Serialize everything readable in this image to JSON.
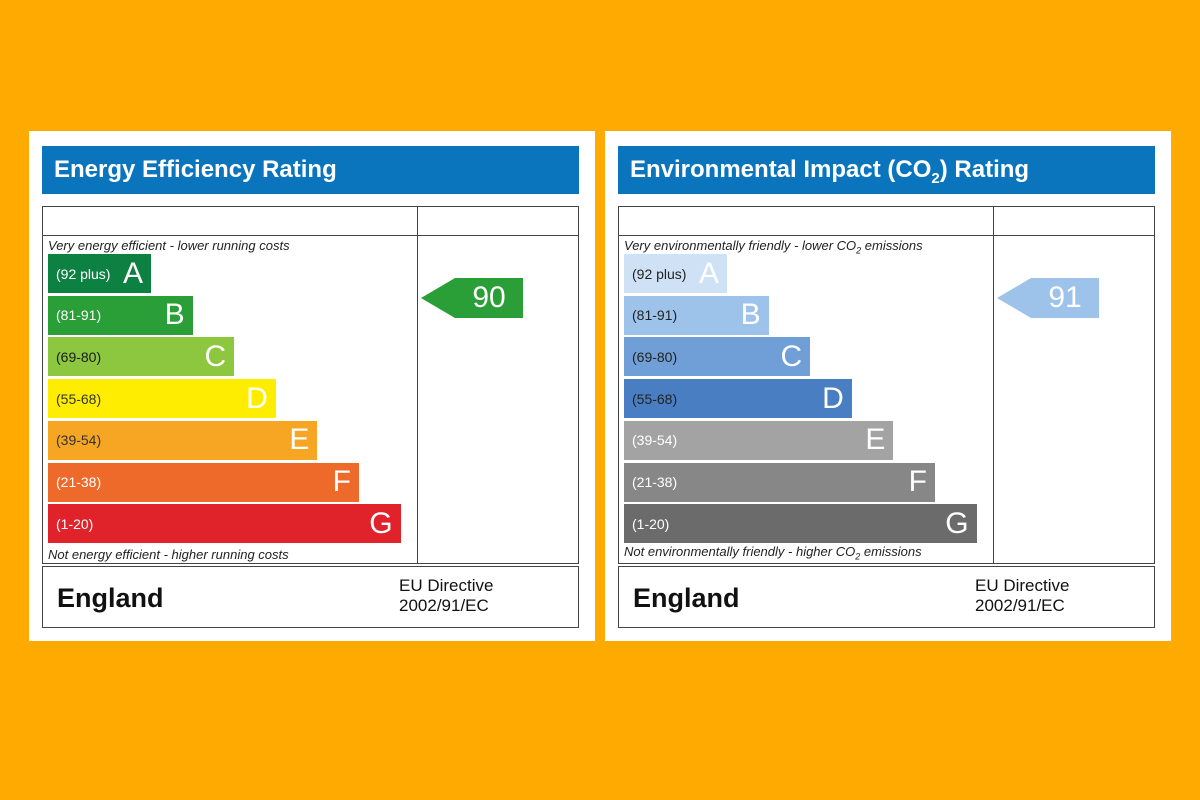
{
  "chart_data": [
    {
      "type": "bar",
      "title": "Energy Efficiency Rating",
      "top_caption": "Very energy efficient - lower running costs",
      "bottom_caption": "Not energy efficient - higher running costs",
      "bands": [
        {
          "range": "(92 plus)",
          "letter": "A",
          "color": "#0D8142"
        },
        {
          "range": "(81-91)",
          "letter": "B",
          "color": "#2A9E37"
        },
        {
          "range": "(69-80)",
          "letter": "C",
          "color": "#8DC63F"
        },
        {
          "range": "(55-68)",
          "letter": "D",
          "color": "#FFED00"
        },
        {
          "range": "(39-54)",
          "letter": "E",
          "color": "#F6A623"
        },
        {
          "range": "(21-38)",
          "letter": "F",
          "color": "#EE6A2A"
        },
        {
          "range": "(1-20)",
          "letter": "G",
          "color": "#E0232A"
        }
      ],
      "current_rating": 90,
      "current_band": "B",
      "marker_color": "#2A9E37",
      "country": "England",
      "directive_line1": "EU Directive",
      "directive_line2": "2002/91/EC"
    },
    {
      "type": "bar",
      "title": "Environmental Impact (CO2) Rating",
      "top_caption": "Very environmentally friendly - lower CO2 emissions",
      "bottom_caption": "Not environmentally friendly - higher CO2 emissions",
      "bands": [
        {
          "range": "(92 plus)",
          "letter": "A",
          "color": "#CFE2F5"
        },
        {
          "range": "(81-91)",
          "letter": "B",
          "color": "#9DC3EB"
        },
        {
          "range": "(69-80)",
          "letter": "C",
          "color": "#6F9FD6"
        },
        {
          "range": "(55-68)",
          "letter": "D",
          "color": "#4A7EC2"
        },
        {
          "range": "(39-54)",
          "letter": "E",
          "color": "#A3A3A3"
        },
        {
          "range": "(21-38)",
          "letter": "F",
          "color": "#878787"
        },
        {
          "range": "(1-20)",
          "letter": "G",
          "color": "#6B6B6B"
        }
      ],
      "current_rating": 91,
      "current_band": "B",
      "marker_color": "#9DC3EB",
      "country": "England",
      "directive_line1": "EU Directive",
      "directive_line2": "2002/91/EC"
    }
  ]
}
